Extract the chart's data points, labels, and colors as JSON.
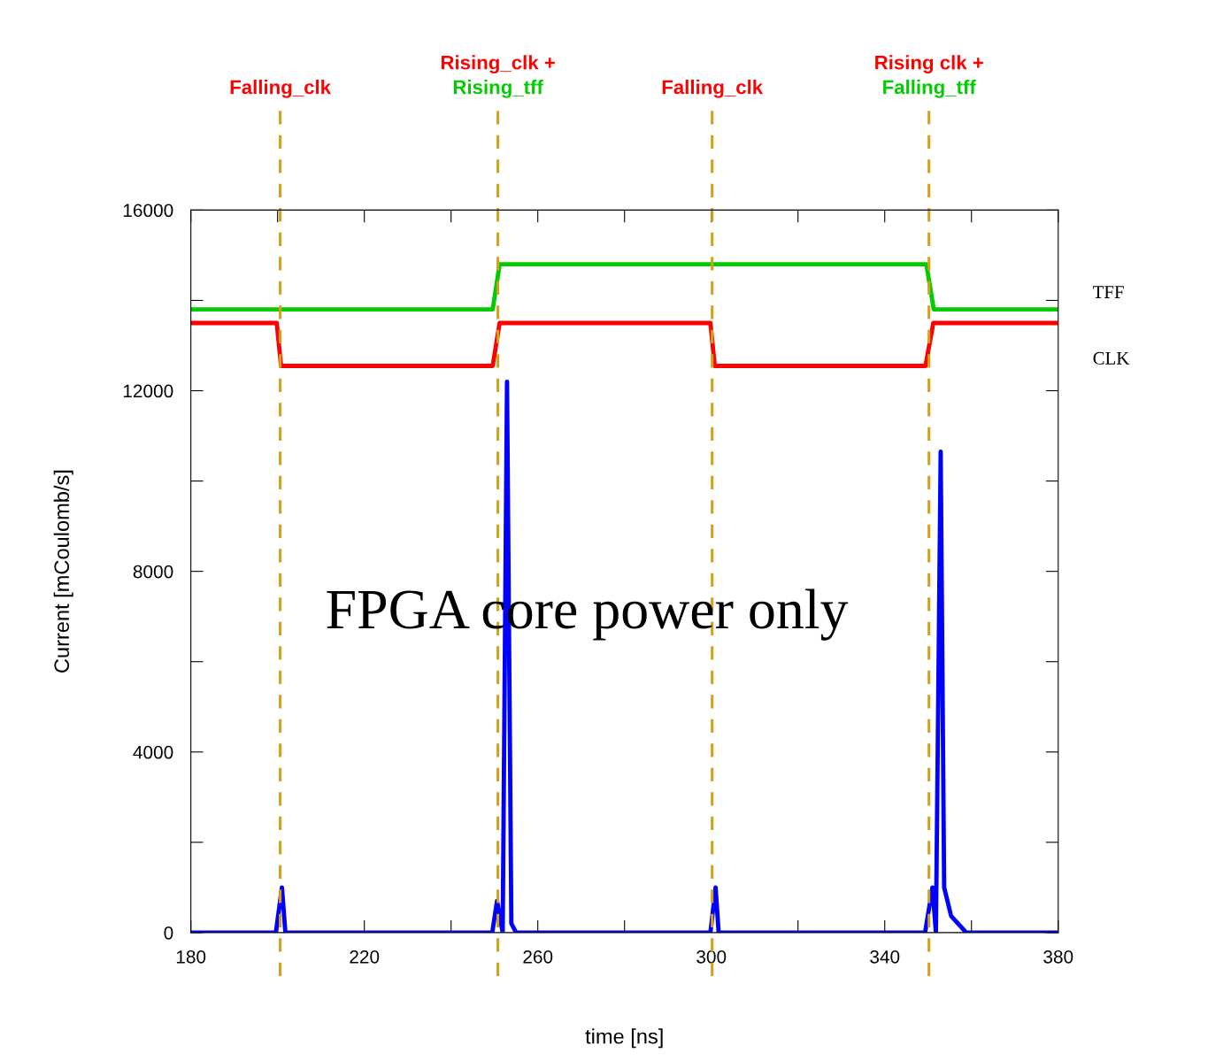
{
  "chart_data": {
    "type": "line",
    "xlabel": "time [ns]",
    "ylabel": "Current [mCoulomb/s]",
    "xlim": [
      180,
      380
    ],
    "xticks": [
      180,
      {
        "value": 200,
        "label": null
      },
      220,
      {
        "value": 240,
        "label": null
      },
      260,
      {
        "value": 280,
        "label": null
      },
      300,
      {
        "value": 320,
        "label": null
      },
      340,
      {
        "value": 360,
        "label": null
      },
      380
    ],
    "ylim": [
      0,
      16000
    ],
    "yticks": [
      0,
      {
        "value": 2000,
        "label": null
      },
      4000,
      {
        "value": 6000,
        "label": null
      },
      8000,
      {
        "value": 10000,
        "label": null
      },
      12000,
      {
        "value": 14000,
        "label": null
      },
      16000
    ],
    "grid": false,
    "legend": false,
    "marker": "none",
    "line_style": "solid",
    "series": [
      {
        "name": "TFF",
        "color": "#00cc00",
        "x": [
          180,
          249.6,
          251.2,
          349.6,
          351.3,
          380
        ],
        "values": [
          13800,
          13800,
          14800,
          14800,
          13800,
          13800
        ]
      },
      {
        "name": "CLK",
        "color": "#ff0000",
        "x": [
          180,
          199.8,
          200.8,
          249.6,
          251.2,
          299.8,
          300.8,
          349.4,
          351.2,
          380
        ],
        "values": [
          13500,
          13500,
          12550,
          12550,
          13500,
          13500,
          12550,
          12550,
          13500,
          13500
        ]
      },
      {
        "color": "#0000ff",
        "x": [
          180,
          199.6,
          201.0,
          201.8,
          249.5,
          250.6,
          251.9,
          252.9,
          253.9,
          255.0,
          299.8,
          301.0,
          301.7,
          349.3,
          351.0,
          351.8,
          352.9,
          353.7,
          355.3,
          358.8,
          380
        ],
        "values": [
          0,
          0,
          1000,
          0,
          0,
          700,
          0,
          12200,
          200,
          0,
          0,
          1000,
          0,
          0,
          1000,
          0,
          10650,
          1000,
          370,
          0,
          0
        ]
      }
    ],
    "ref_lines": [
      {
        "axis": "x",
        "value": 200.6,
        "label": "Falling_clk",
        "color": "#d4a017",
        "line_style": "dashed"
      },
      {
        "axis": "x",
        "value": 250.8,
        "label": "Rising_clk +\nRising_tff",
        "color": "#d4a017",
        "line_style": "dashed"
      },
      {
        "axis": "x",
        "value": 300.2,
        "label": "Falling_clk",
        "color": "#d4a017",
        "line_style": "dashed"
      },
      {
        "axis": "x",
        "value": 350.2,
        "label": "Rising clk +\nFalling_tff",
        "color": "#d4a017",
        "line_style": "dashed"
      }
    ],
    "annotations": [
      "FPGA core power only"
    ]
  }
}
